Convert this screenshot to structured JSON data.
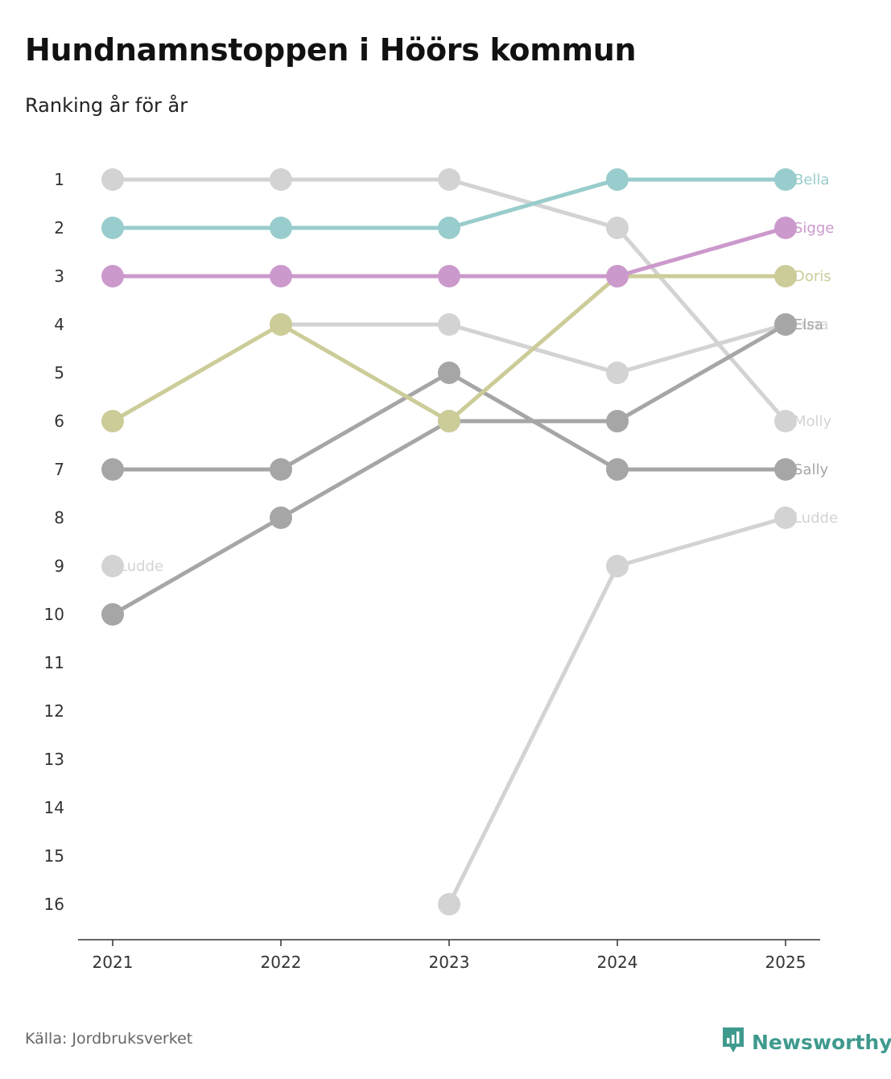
{
  "header": {
    "title": "Hundnamnstoppen i Höörs kommun",
    "subtitle": "Ranking år för år"
  },
  "footer": {
    "source": "Källa: Jordbruksverket",
    "brand": "Newsworthy",
    "brand_icon": "newsworthy-logo-icon",
    "brand_color": "#3f9a8e"
  },
  "chart_data": {
    "type": "line",
    "title": "Hundnamnstoppen i Höörs kommun",
    "subtitle": "Ranking år för år",
    "xlabel": "",
    "ylabel": "",
    "x": [
      "2021",
      "2022",
      "2023",
      "2024",
      "2025"
    ],
    "y_ticks": [
      1,
      2,
      3,
      4,
      5,
      6,
      7,
      8,
      9,
      10,
      11,
      12,
      13,
      14,
      15,
      16
    ],
    "ylim": [
      1,
      16
    ],
    "y_inverted": true,
    "grid": false,
    "series": [
      {
        "name": "Molly",
        "color": "#d3d3d3",
        "values": [
          1,
          1,
          1,
          2,
          6
        ],
        "label": "Molly"
      },
      {
        "name": "Luna",
        "color": "#d3d3d3",
        "values": [
          null,
          4,
          4,
          5,
          4
        ],
        "label": "Luna"
      },
      {
        "name": "Ludde",
        "color": "#d3d3d3",
        "values": [
          9,
          null,
          16,
          9,
          8
        ],
        "label": "Ludde",
        "start_label": "Ludde"
      },
      {
        "name": "Elsa",
        "color": "#a6a6a6",
        "values": [
          10,
          8,
          6,
          6,
          4
        ],
        "label": "Elsa"
      },
      {
        "name": "Sally",
        "color": "#a6a6a6",
        "values": [
          7,
          7,
          5,
          7,
          7
        ],
        "label": "Sally"
      },
      {
        "name": "Doris",
        "color": "#cccc99",
        "values": [
          6,
          4,
          6,
          3,
          3
        ],
        "label": "Doris"
      },
      {
        "name": "Sigge",
        "color": "#cc99cc",
        "values": [
          3,
          3,
          3,
          3,
          2
        ],
        "label": "Sigge"
      },
      {
        "name": "Bella",
        "color": "#99cccc",
        "values": [
          2,
          2,
          2,
          1,
          1
        ],
        "label": "Bella"
      }
    ]
  }
}
